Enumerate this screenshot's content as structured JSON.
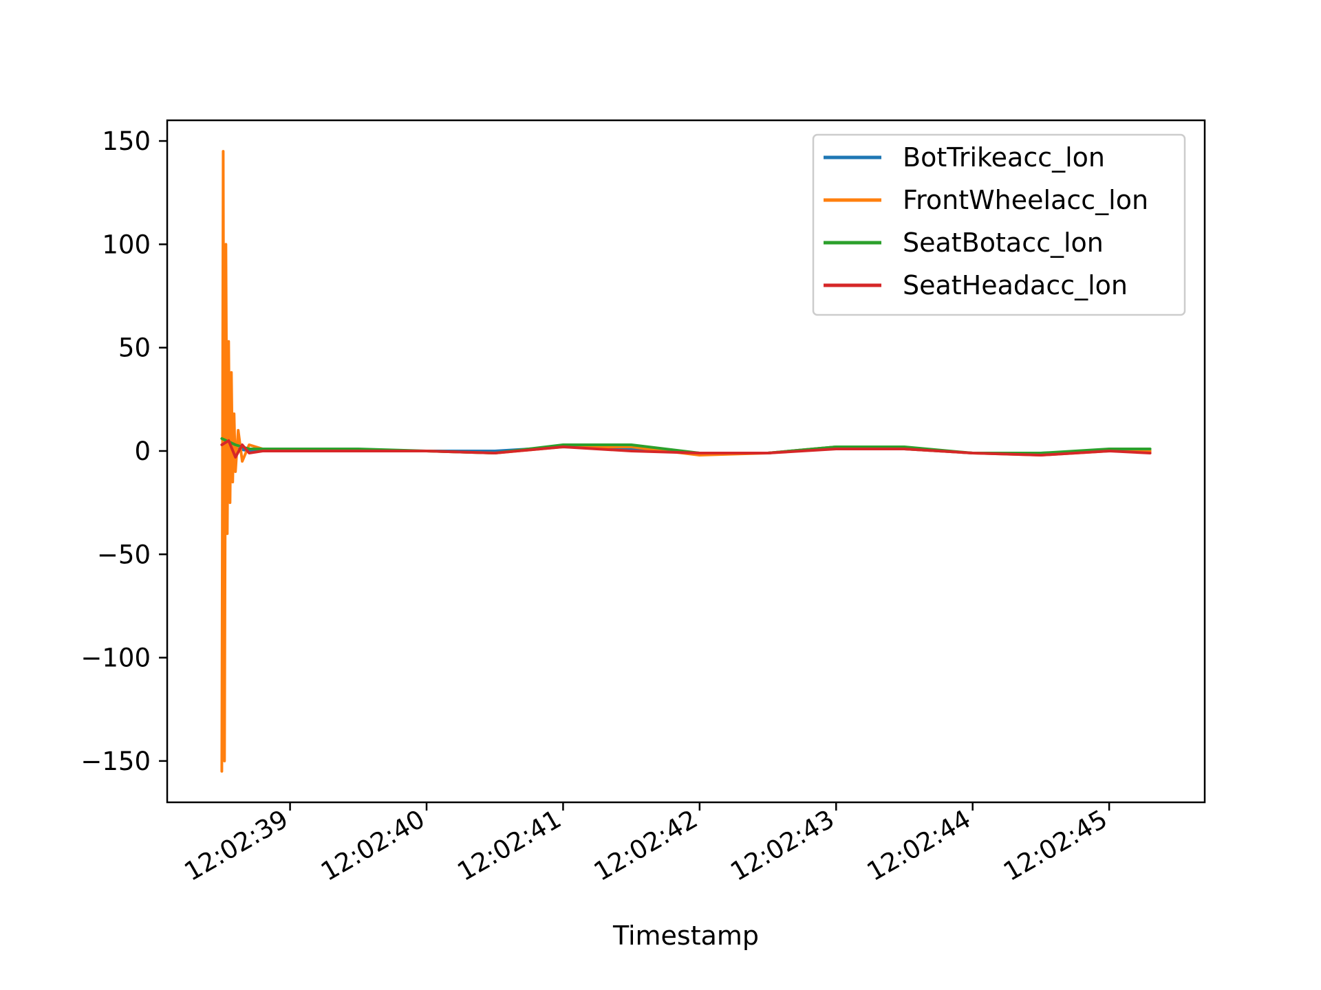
{
  "chart_data": {
    "type": "line",
    "title": "",
    "xlabel": "Timestamp",
    "ylabel": "",
    "xlim": [
      "12:02:38.1",
      "12:02:45.7"
    ],
    "ylim": [
      -170,
      160
    ],
    "x_ticks": [
      "12:02:39",
      "12:02:40",
      "12:02:41",
      "12:02:42",
      "12:02:43",
      "12:02:44",
      "12:02:45"
    ],
    "y_ticks": [
      {
        "value": 150,
        "label": "150"
      },
      {
        "value": 100,
        "label": "100"
      },
      {
        "value": 50,
        "label": "50"
      },
      {
        "value": 0,
        "label": "0"
      },
      {
        "value": -50,
        "label": "−50"
      },
      {
        "value": -100,
        "label": "−100"
      },
      {
        "value": -150,
        "label": "−150"
      }
    ],
    "grid": false,
    "legend_position": "top-right",
    "series": [
      {
        "name": "BotTrikeacc_lon",
        "color": "#1f77b4",
        "x": [
          "12:02:38.55",
          "12:02:38.7",
          "12:02:39.0",
          "12:02:39.5",
          "12:02:40.0",
          "12:02:40.5",
          "12:02:41.0",
          "12:02:41.5",
          "12:02:42.0",
          "12:02:42.5",
          "12:02:43.0",
          "12:02:43.5",
          "12:02:44.0",
          "12:02:44.5",
          "12:02:45.0",
          "12:02:45.3"
        ],
        "y": [
          2,
          0,
          0,
          0,
          0,
          0,
          2,
          1,
          -1,
          -1,
          2,
          1,
          -1,
          -1,
          0,
          0
        ]
      },
      {
        "name": "FrontWheelacc_lon",
        "color": "#ff7f0e",
        "x": [
          "12:02:38.5",
          "12:02:38.51",
          "12:02:38.52",
          "12:02:38.53",
          "12:02:38.54",
          "12:02:38.55",
          "12:02:38.56",
          "12:02:38.57",
          "12:02:38.58",
          "12:02:38.59",
          "12:02:38.6",
          "12:02:38.62",
          "12:02:38.65",
          "12:02:38.7",
          "12:02:38.8",
          "12:02:39.0",
          "12:02:39.5",
          "12:02:40.0",
          "12:02:40.5",
          "12:02:41.0",
          "12:02:41.5",
          "12:02:42.0",
          "12:02:42.5",
          "12:02:43.0",
          "12:02:43.5",
          "12:02:44.0",
          "12:02:44.5",
          "12:02:45.0",
          "12:02:45.3"
        ],
        "y": [
          -155,
          145,
          -150,
          100,
          -40,
          53,
          -25,
          38,
          -15,
          18,
          -10,
          10,
          -5,
          3,
          1,
          0,
          0,
          0,
          -1,
          2,
          2,
          -2,
          -1,
          2,
          1,
          -1,
          -2,
          0,
          0
        ]
      },
      {
        "name": "SeatBotacc_lon",
        "color": "#2ca02c",
        "x": [
          "12:02:38.5",
          "12:02:38.6",
          "12:02:38.7",
          "12:02:39.0",
          "12:02:39.5",
          "12:02:40.0",
          "12:02:40.5",
          "12:02:41.0",
          "12:02:41.5",
          "12:02:42.0",
          "12:02:42.5",
          "12:02:43.0",
          "12:02:43.5",
          "12:02:44.0",
          "12:02:44.5",
          "12:02:45.0",
          "12:02:45.3"
        ],
        "y": [
          6,
          3,
          1,
          1,
          1,
          0,
          -1,
          3,
          3,
          -1,
          -1,
          2,
          2,
          -1,
          -1,
          1,
          1
        ]
      },
      {
        "name": "SeatHeadacc_lon",
        "color": "#d62728",
        "x": [
          "12:02:38.5",
          "12:02:38.55",
          "12:02:38.6",
          "12:02:38.65",
          "12:02:38.7",
          "12:02:38.8",
          "12:02:39.0",
          "12:02:39.5",
          "12:02:40.0",
          "12:02:40.5",
          "12:02:41.0",
          "12:02:41.5",
          "12:02:42.0",
          "12:02:42.5",
          "12:02:43.0",
          "12:02:43.5",
          "12:02:44.0",
          "12:02:44.5",
          "12:02:45.0",
          "12:02:45.3"
        ],
        "y": [
          3,
          5,
          -3,
          3,
          -1,
          0,
          0,
          0,
          0,
          -1,
          2,
          0,
          -1,
          -1,
          1,
          1,
          -1,
          -2,
          0,
          -1
        ]
      }
    ]
  }
}
